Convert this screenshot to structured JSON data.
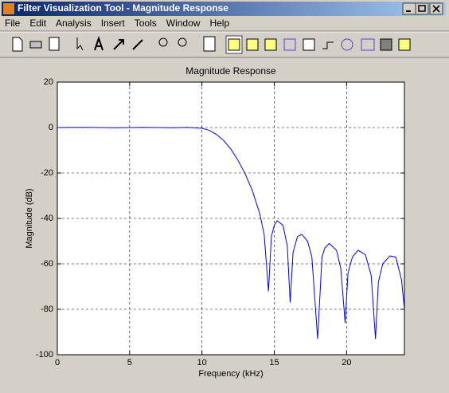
{
  "window": {
    "title": "Filter Visualization Tool - Magnitude Response",
    "menu": [
      "File",
      "Edit",
      "Analysis",
      "Insert",
      "Tools",
      "Window",
      "Help"
    ]
  },
  "chart_data": {
    "type": "line",
    "title": "Magnitude Response",
    "x_label": "Frequency (kHz)",
    "y_label": "Magnitude (dB)",
    "x": [
      0,
      1,
      2,
      3,
      4,
      5,
      6,
      7,
      8,
      9,
      10,
      10.5,
      11,
      11.5,
      12,
      12.5,
      13,
      13.5,
      14,
      14.3,
      14.6,
      14.8,
      15,
      15.2,
      15.6,
      15.9,
      16.1,
      16.3,
      16.6,
      16.9,
      17.3,
      17.6,
      18,
      18.3,
      18.5,
      18.8,
      19.3,
      19.6,
      19.9,
      20.1,
      20.4,
      20.8,
      21.3,
      21.7,
      22,
      22.2,
      22.5,
      23,
      23.4,
      23.8,
      24
    ],
    "values": [
      0,
      0.1,
      0.1,
      0,
      -0.1,
      0,
      0.1,
      0,
      -0.1,
      0.1,
      -0.3,
      -1.2,
      -3,
      -5.7,
      -9.5,
      -14.5,
      -20.5,
      -28,
      -38,
      -47,
      -72,
      -48,
      -43,
      -41,
      -43,
      -52,
      -77,
      -55,
      -48,
      -47,
      -50,
      -57,
      -93,
      -57,
      -53,
      -51,
      -54,
      -62,
      -86,
      -64,
      -57,
      -54,
      -56,
      -65,
      -93,
      -68,
      -60,
      -56.5,
      -57,
      -67,
      -80
    ],
    "color": "#0000ff",
    "xlim": [
      0,
      24
    ],
    "xticks": [
      0,
      5,
      10,
      15,
      20
    ],
    "ylim": [
      -100,
      20
    ],
    "yticks": [
      20,
      0,
      -20,
      -40,
      -60,
      -80,
      -100
    ],
    "grid": true
  }
}
